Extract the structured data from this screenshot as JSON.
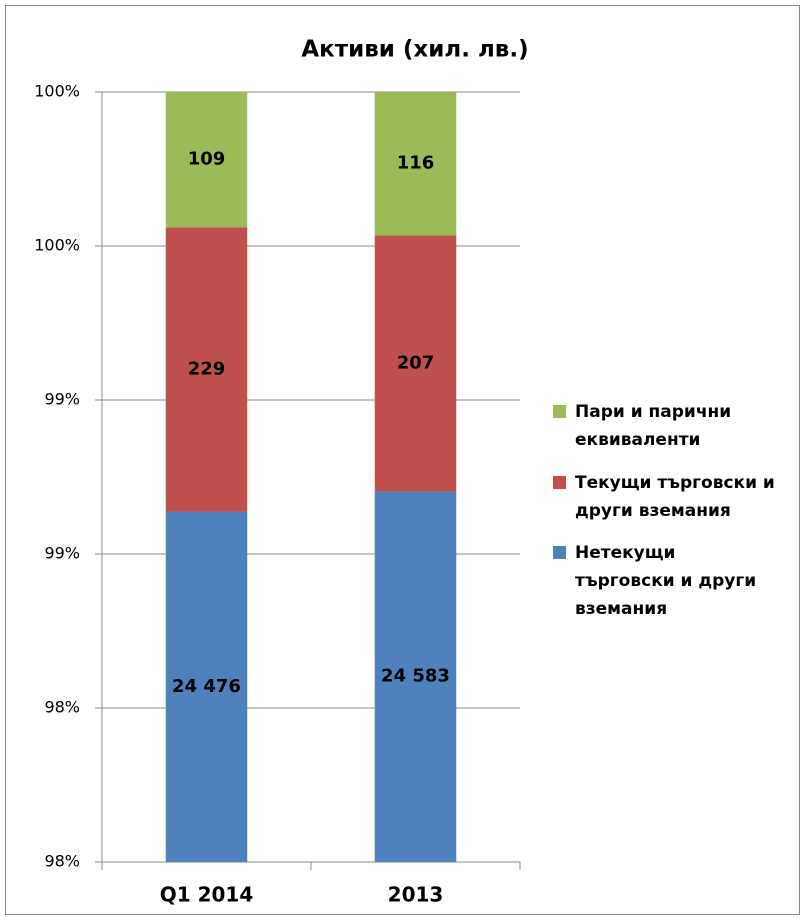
{
  "chart_data": {
    "type": "bar",
    "stack": "percent",
    "title": "Активи (хил. лв.)",
    "categories": [
      "Q1 2014",
      "2013"
    ],
    "series": [
      {
        "name": "Нетекущи търговски и други вземания",
        "color": "#4f81bd",
        "values": [
          24476,
          24583
        ],
        "value_labels": [
          "24 476",
          "24 583"
        ]
      },
      {
        "name": "Текущи търговски и други вземания",
        "color": "#c0504d",
        "values": [
          229,
          207
        ]
      },
      {
        "name": "Пари и парични еквиваленти",
        "color": "#9bbb59",
        "values": [
          109,
          116
        ]
      }
    ],
    "ylim": [
      97.5,
      100
    ],
    "yticks": [
      {
        "value": 97.5,
        "label": "98%"
      },
      {
        "value": 98,
        "label": "98%"
      },
      {
        "value": 98.5,
        "label": "99%"
      },
      {
        "value": 99,
        "label": "99%"
      },
      {
        "value": 99.5,
        "label": "100%"
      },
      {
        "value": 100,
        "label": "100%"
      }
    ],
    "grid": true,
    "legend": "right"
  }
}
